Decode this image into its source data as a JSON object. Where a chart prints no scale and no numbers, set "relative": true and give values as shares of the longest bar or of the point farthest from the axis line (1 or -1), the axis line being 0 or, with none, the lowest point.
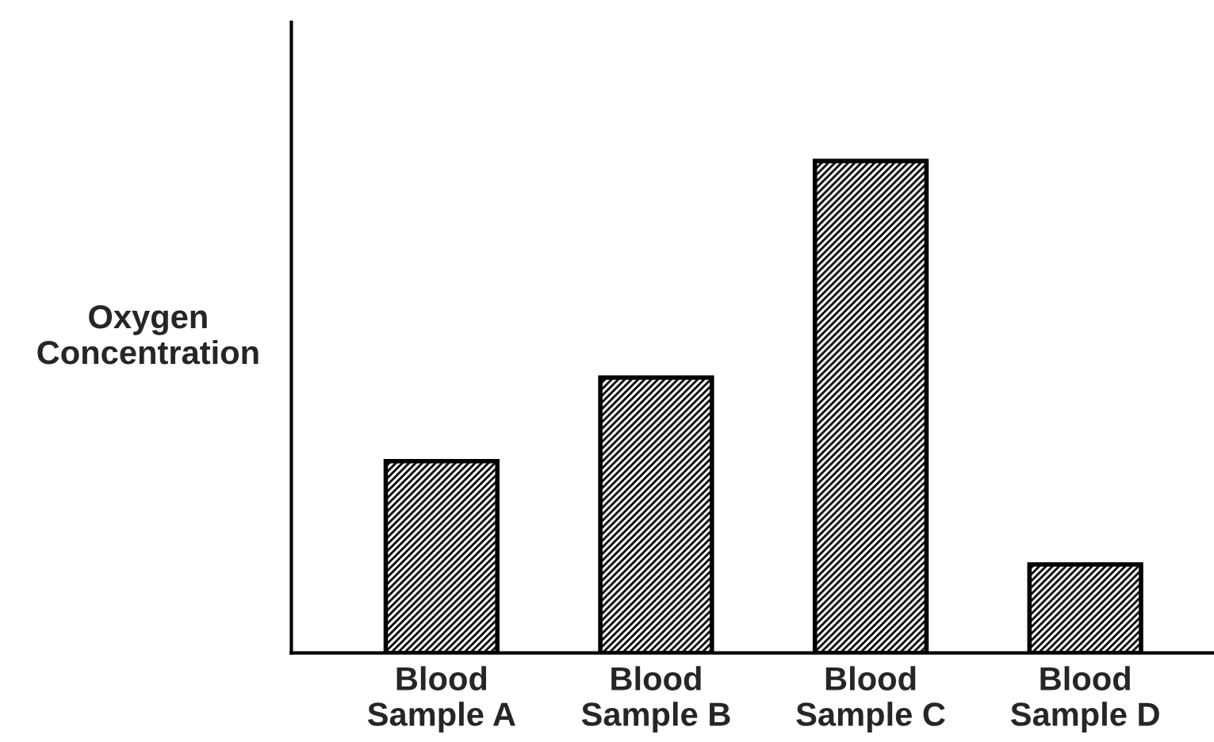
{
  "chart_data": {
    "type": "bar",
    "ylabel": "Oxygen\nConcentration",
    "categories": [
      "Blood\nSample A",
      "Blood\nSample B",
      "Blood\nSample C",
      "Blood\nSample D"
    ],
    "values": [
      0.39,
      0.56,
      1,
      0.18
    ],
    "color": "#000000",
    "relative": true,
    "grid": false,
    "legend": false
  }
}
